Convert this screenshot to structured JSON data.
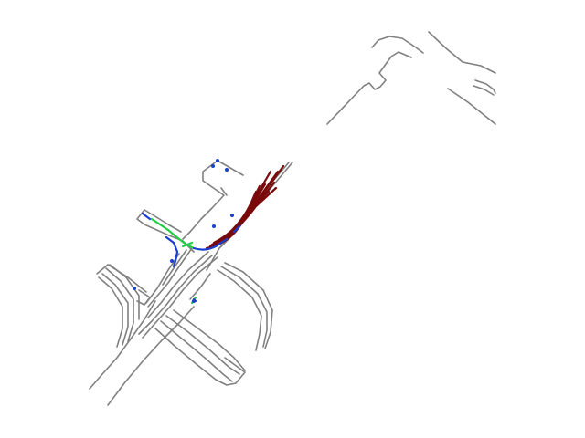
{
  "map": {
    "background": "#ffffff",
    "colors": {
      "road": "#808080",
      "predicted_trajectory": "#7a0a0a",
      "agent": "#1a3fd0",
      "ego_path": "#22cc44"
    }
  }
}
